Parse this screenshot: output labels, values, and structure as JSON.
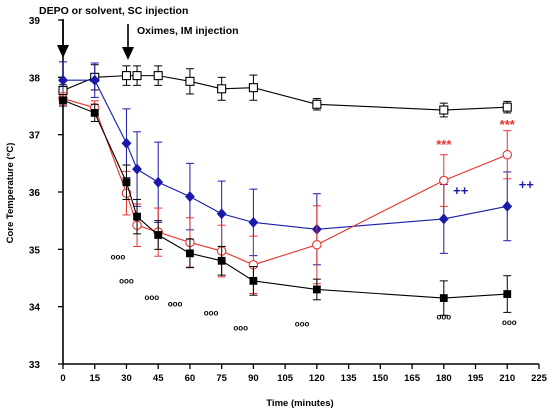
{
  "chart_data": {
    "type": "line",
    "xlabel": "Time (minutes)",
    "ylabel": "Core Temperature (°C)",
    "xlim": [
      0,
      225
    ],
    "ylim": [
      33,
      39
    ],
    "xticks": [
      0,
      15,
      30,
      45,
      60,
      75,
      90,
      105,
      120,
      135,
      150,
      165,
      180,
      195,
      210,
      225
    ],
    "yticks": [
      33,
      34,
      35,
      36,
      37,
      38,
      39
    ],
    "annotations": {
      "depo": "DEPO or solvent, SC  injection",
      "oximes": "Oximes, IM injection"
    },
    "series": [
      {
        "color": "#000000",
        "marker": "square-open",
        "points": [
          {
            "x": 0,
            "y": 37.77,
            "e": 0.1
          },
          {
            "x": 15,
            "y": 38.0,
            "e": 0.22
          },
          {
            "x": 30,
            "y": 38.03,
            "e": 0.17
          },
          {
            "x": 35,
            "y": 38.03,
            "e": 0.17
          },
          {
            "x": 45,
            "y": 38.03,
            "e": 0.17
          },
          {
            "x": 60,
            "y": 37.93,
            "e": 0.22
          },
          {
            "x": 75,
            "y": 37.8,
            "e": 0.2
          },
          {
            "x": 90,
            "y": 37.82,
            "e": 0.22
          },
          {
            "x": 120,
            "y": 37.53,
            "e": 0.1
          },
          {
            "x": 180,
            "y": 37.43,
            "e": 0.12
          },
          {
            "x": 210,
            "y": 37.48,
            "e": 0.1
          }
        ]
      },
      {
        "color": "#1a1aaa",
        "marker": "diamond",
        "points": [
          {
            "x": 0,
            "y": 37.95,
            "e": 0.32
          },
          {
            "x": 15,
            "y": 37.95,
            "e": 0.3
          },
          {
            "x": 30,
            "y": 36.85,
            "e": 0.6
          },
          {
            "x": 35,
            "y": 36.4,
            "e": 0.65
          },
          {
            "x": 45,
            "y": 36.17,
            "e": 0.7
          },
          {
            "x": 60,
            "y": 35.92,
            "e": 0.58
          },
          {
            "x": 75,
            "y": 35.62,
            "e": 0.57
          },
          {
            "x": 90,
            "y": 35.47,
            "e": 0.58
          },
          {
            "x": 120,
            "y": 35.35,
            "e": 0.62
          },
          {
            "x": 180,
            "y": 35.53,
            "e": 0.6
          },
          {
            "x": 210,
            "y": 35.75,
            "e": 0.6
          }
        ]
      },
      {
        "color": "#e8322e",
        "marker": "circle-open",
        "points": [
          {
            "x": 0,
            "y": 37.63,
            "e": 0.1
          },
          {
            "x": 15,
            "y": 37.47,
            "e": 0.12
          },
          {
            "x": 30,
            "y": 35.98,
            "e": 0.38
          },
          {
            "x": 35,
            "y": 35.42,
            "e": 0.37
          },
          {
            "x": 45,
            "y": 35.3,
            "e": 0.42
          },
          {
            "x": 60,
            "y": 35.12,
            "e": 0.43
          },
          {
            "x": 75,
            "y": 34.97,
            "e": 0.45
          },
          {
            "x": 90,
            "y": 34.73,
            "e": 0.5
          },
          {
            "x": 120,
            "y": 35.08,
            "e": 0.68
          },
          {
            "x": 180,
            "y": 36.2,
            "e": 0.45
          },
          {
            "x": 210,
            "y": 36.65,
            "e": 0.42
          }
        ]
      },
      {
        "color": "#000000",
        "marker": "square-filled",
        "points": [
          {
            "x": 0,
            "y": 37.6,
            "e": 0.1
          },
          {
            "x": 15,
            "y": 37.38,
            "e": 0.15
          },
          {
            "x": 30,
            "y": 36.17,
            "e": 0.3
          },
          {
            "x": 35,
            "y": 35.57,
            "e": 0.3
          },
          {
            "x": 45,
            "y": 35.25,
            "e": 0.25
          },
          {
            "x": 60,
            "y": 34.93,
            "e": 0.25
          },
          {
            "x": 75,
            "y": 34.8,
            "e": 0.25
          },
          {
            "x": 90,
            "y": 34.45,
            "e": 0.25
          },
          {
            "x": 120,
            "y": 34.3,
            "e": 0.18
          },
          {
            "x": 180,
            "y": 34.15,
            "e": 0.3
          },
          {
            "x": 210,
            "y": 34.22,
            "e": 0.32
          }
        ]
      }
    ],
    "significance": [
      {
        "text": "ooo",
        "x": 26,
        "y": 34.82,
        "color": "#000000"
      },
      {
        "text": "ooo",
        "x": 30,
        "y": 34.4,
        "color": "#000000"
      },
      {
        "text": "ooo",
        "x": 42,
        "y": 34.12,
        "color": "#000000"
      },
      {
        "text": "ooo",
        "x": 53,
        "y": 34.0,
        "color": "#000000"
      },
      {
        "text": "ooo",
        "x": 70,
        "y": 33.85,
        "color": "#000000"
      },
      {
        "text": "ooo",
        "x": 84,
        "y": 33.58,
        "color": "#000000"
      },
      {
        "text": "ooo",
        "x": 113,
        "y": 33.65,
        "color": "#000000"
      },
      {
        "text": "ooo",
        "x": 180,
        "y": 33.78,
        "color": "#000000"
      },
      {
        "text": "ooo",
        "x": 211,
        "y": 33.68,
        "color": "#000000"
      },
      {
        "text": "***",
        "x": 180,
        "y": 36.75,
        "color": "#e8322e"
      },
      {
        "text": "***",
        "x": 210,
        "y": 37.1,
        "color": "#e8322e"
      },
      {
        "text": "++",
        "x": 188,
        "y": 35.95,
        "color": "#1a1aaa"
      },
      {
        "text": "++",
        "x": 219,
        "y": 36.05,
        "color": "#1a1aaa"
      }
    ]
  }
}
